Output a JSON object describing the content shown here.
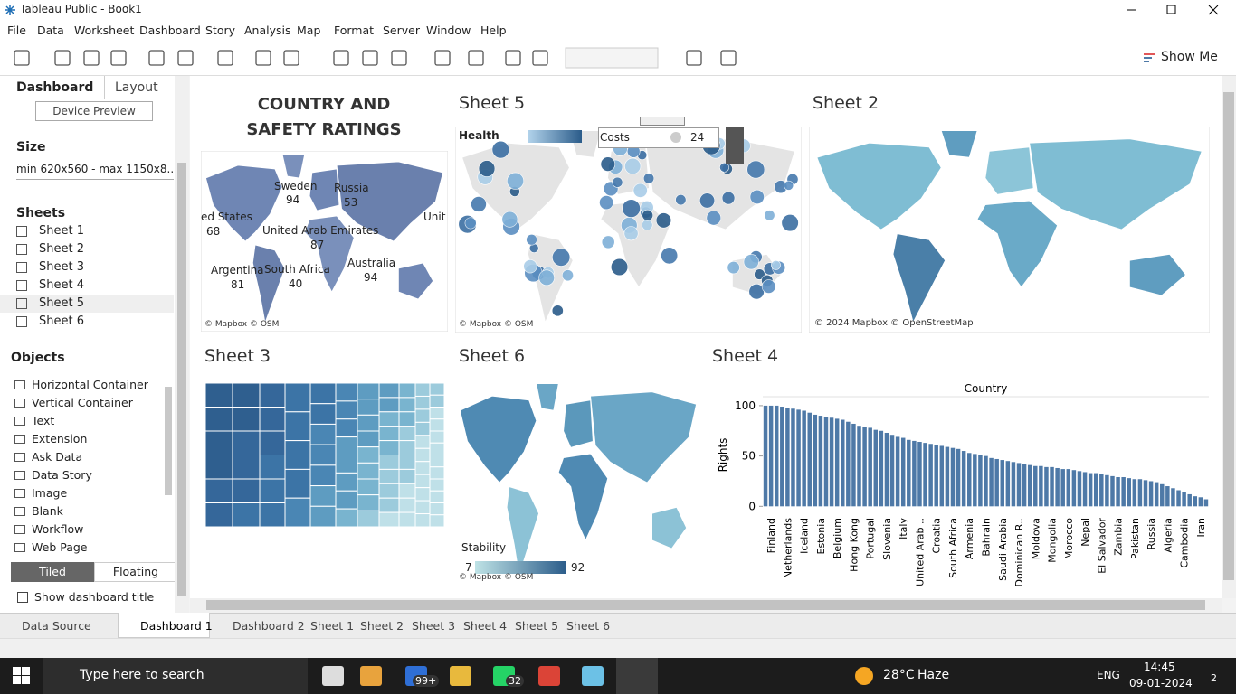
{
  "window_title": "Tableau Public - Book1",
  "menu": [
    "File",
    "Data",
    "Worksheet",
    "Dashboard",
    "Story",
    "Analysis",
    "Map",
    "Format",
    "Server",
    "Window",
    "Help"
  ],
  "toolbar": {
    "show_me": "Show Me"
  },
  "side_panel": {
    "tabs": [
      "Dashboard",
      "Layout"
    ],
    "device_preview": "Device Preview",
    "size_label": "Size",
    "size_value": "min 620x560 - max 1150x8...",
    "sheets_label": "Sheets",
    "sheets": [
      "Sheet 1",
      "Sheet 2",
      "Sheet 3",
      "Sheet 4",
      "Sheet 5",
      "Sheet 6"
    ],
    "objects_label": "Objects",
    "objects": [
      "Horizontal Container",
      "Vertical Container",
      "Text",
      "Extension",
      "Ask Data",
      "Data Story",
      "Image",
      "Blank",
      "Workflow",
      "Web Page"
    ],
    "layout_modes": [
      "Tiled",
      "Floating"
    ],
    "show_title": "Show dashboard title"
  },
  "dashboard": {
    "title": "COUNTRY AND SAFETY RATINGS",
    "sheet1": {
      "labels": [
        {
          "name": "Sweden",
          "value": 94
        },
        {
          "name": "Russia",
          "value": 53
        },
        {
          "name": "ed States",
          "value": 68
        },
        {
          "name": "United Arab Emirates",
          "value": 87
        },
        {
          "name": "Argentina",
          "value": 81
        },
        {
          "name": "South Africa",
          "value": 40
        },
        {
          "name": "Australia",
          "value": 94
        },
        {
          "name": "Unit"
        }
      ],
      "attribution": "© Mapbox © OSM"
    },
    "sheet5": {
      "title": "Sheet 5",
      "legend": "Health",
      "filter_label": "Costs",
      "filter_value": 24,
      "attribution": "© Mapbox © OSM"
    },
    "sheet2": {
      "title": "Sheet 2",
      "attribution": "© 2024 Mapbox © OpenStreetMap"
    },
    "sheet3": {
      "title": "Sheet 3"
    },
    "sheet6": {
      "title": "Sheet 6",
      "legend": "Stability",
      "legend_min": 7,
      "legend_max": 92,
      "attribution": "© Mapbox © OSM"
    },
    "sheet4": {
      "title": "Sheet 4",
      "chart": {
        "type": "bar",
        "header": "Country",
        "y_label": "Rights",
        "color": "#4e79a7",
        "ylim": [
          -6,
          108
        ],
        "yticks": [
          0,
          50,
          100
        ],
        "categories": [
          null,
          "Finland",
          null,
          null,
          "Netherlands",
          null,
          null,
          "Iceland",
          null,
          null,
          "Estonia",
          null,
          null,
          "Belgium",
          null,
          null,
          "Hong Kong",
          null,
          null,
          "Portugal",
          null,
          null,
          "Slovenia",
          null,
          null,
          "Italy",
          null,
          null,
          "United Arab ..",
          null,
          null,
          "Croatia",
          null,
          null,
          "South Africa",
          null,
          null,
          "Armenia",
          null,
          null,
          "Bahrain",
          null,
          null,
          "Saudi Arabia",
          null,
          null,
          "Dominican R..",
          null,
          null,
          "Moldova",
          null,
          null,
          "Mongolia",
          null,
          null,
          "Morocco",
          null,
          null,
          "Nepal",
          null,
          null,
          "El Salvador",
          null,
          null,
          "Zambia",
          null,
          null,
          "Pakistan",
          null,
          null,
          "Russia",
          null,
          null,
          "Algeria",
          null,
          null,
          "Cambodia",
          null,
          null,
          "Iran",
          null
        ],
        "values": [
          100,
          100,
          100,
          99,
          98,
          97,
          96,
          95,
          93,
          91,
          90,
          89,
          88,
          87,
          86,
          84,
          82,
          80,
          79,
          78,
          76,
          75,
          73,
          71,
          69,
          68,
          66,
          65,
          64,
          63,
          62,
          61,
          60,
          59,
          58,
          57,
          55,
          53,
          52,
          51,
          50,
          48,
          47,
          46,
          45,
          44,
          43,
          42,
          41,
          40,
          40,
          39,
          39,
          38,
          37,
          37,
          36,
          35,
          34,
          33,
          33,
          32,
          31,
          30,
          29,
          29,
          28,
          27,
          27,
          26,
          25,
          24,
          22,
          20,
          18,
          16,
          14,
          12,
          10,
          9,
          7
        ]
      }
    }
  },
  "tabs": [
    "Data Source",
    "Dashboard 1",
    "Dashboard 2",
    "Sheet 1",
    "Sheet 2",
    "Sheet 3",
    "Sheet 4",
    "Sheet 5",
    "Sheet 6"
  ],
  "taskbar": {
    "search": "Type here to search",
    "mail_badge": "99+",
    "whatsapp_badge": "32",
    "temperature": "28°C",
    "weather": "Haze",
    "language": "ENG",
    "time": "14:45",
    "date": "09-01-2024",
    "notifications": 2
  }
}
